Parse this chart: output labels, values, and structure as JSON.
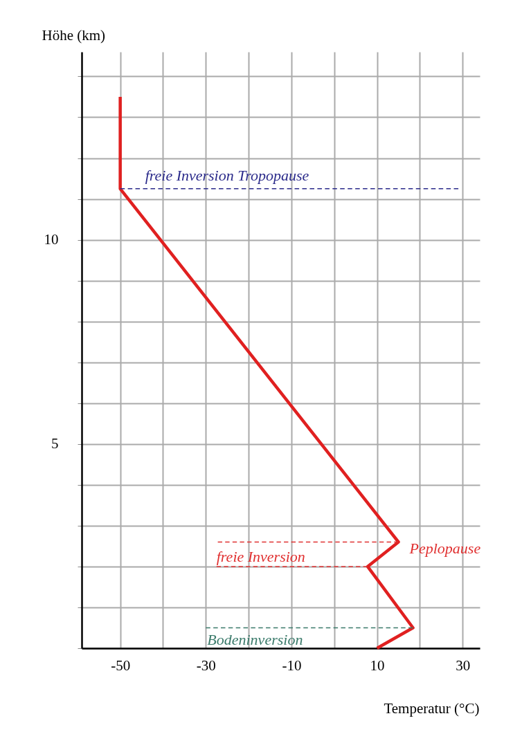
{
  "chart_data": {
    "type": "line",
    "xlabel": "Temperatur (°C)",
    "ylabel": "Höhe (km)",
    "xlim": [
      -59,
      34
    ],
    "ylim": [
      0,
      14.6
    ],
    "xticks": [
      -50,
      {
        "value": -40,
        "label": null
      },
      -30,
      {
        "value": -20,
        "label": null
      },
      -10,
      {
        "value": 0,
        "label": null
      },
      10,
      {
        "value": 20,
        "label": null
      },
      30
    ],
    "yticks": [
      {
        "value": 0,
        "label": null
      },
      {
        "value": 1,
        "label": null
      },
      {
        "value": 2,
        "label": null
      },
      {
        "value": 3,
        "label": null
      },
      {
        "value": 4,
        "label": null
      },
      5,
      {
        "value": 6,
        "label": null
      },
      {
        "value": 7,
        "label": null
      },
      {
        "value": 8,
        "label": null
      },
      {
        "value": 9,
        "label": null
      },
      10,
      {
        "value": 11,
        "label": null
      },
      {
        "value": 12,
        "label": null
      },
      {
        "value": 13,
        "label": null
      },
      {
        "value": 14,
        "label": null
      }
    ],
    "grid": true,
    "series": [
      {
        "color": "#e02020",
        "x": [
          10,
          18.4,
          7.8,
          15,
          -50,
          -50
        ],
        "values": [
          0,
          0.5,
          2.0,
          2.6,
          11.25,
          13.5
        ],
        "line_style": "solid"
      },
      {
        "color": "#2a2a8a",
        "x": [
          -50,
          29
        ],
        "values": [
          11.25,
          11.25
        ],
        "line_style": "dashed"
      },
      {
        "color": "#e03030",
        "x": [
          -27.2,
          15
        ],
        "values": [
          2.6,
          2.6
        ],
        "line_style": "dashed"
      },
      {
        "color": "#e03030",
        "x": [
          -27.5,
          7.8
        ],
        "values": [
          2.0,
          2.0
        ],
        "line_style": "dashed"
      },
      {
        "color": "#3a7a6a",
        "x": [
          -30,
          18.4
        ],
        "values": [
          0.5,
          0.5
        ],
        "line_style": "dashed"
      }
    ],
    "annotations": [
      {
        "text": "freie Inversion Tropopause",
        "x": -50,
        "y": 11.25
      },
      {
        "text": "freie Inversion",
        "x": -27.5,
        "y": 2.0
      },
      {
        "text": "Peplopause",
        "x": 15,
        "y": 2.6
      },
      {
        "text": "Bodeninversion",
        "x": -30,
        "y": 0.5
      }
    ]
  }
}
